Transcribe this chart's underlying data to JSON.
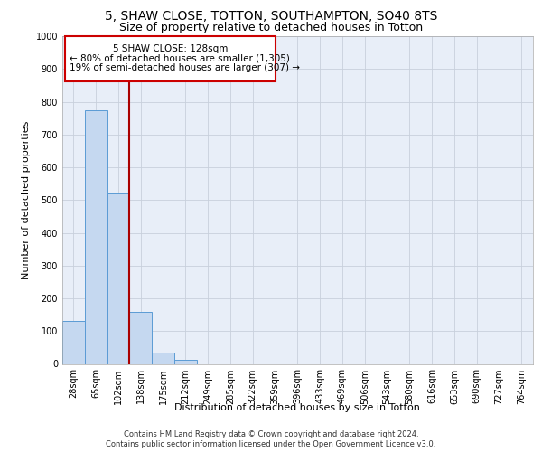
{
  "title1": "5, SHAW CLOSE, TOTTON, SOUTHAMPTON, SO40 8TS",
  "title2": "Size of property relative to detached houses in Totton",
  "xlabel": "Distribution of detached houses by size in Totton",
  "ylabel": "Number of detached properties",
  "bin_labels": [
    "28sqm",
    "65sqm",
    "102sqm",
    "138sqm",
    "175sqm",
    "212sqm",
    "249sqm",
    "285sqm",
    "322sqm",
    "359sqm",
    "396sqm",
    "433sqm",
    "469sqm",
    "506sqm",
    "543sqm",
    "580sqm",
    "616sqm",
    "653sqm",
    "690sqm",
    "727sqm",
    "764sqm"
  ],
  "bar_values": [
    130,
    775,
    520,
    160,
    35,
    12,
    0,
    0,
    0,
    0,
    0,
    0,
    0,
    0,
    0,
    0,
    0,
    0,
    0,
    0,
    0
  ],
  "bar_color": "#c5d8f0",
  "bar_edge_color": "#5b9bd5",
  "grid_color": "#c8d0dc",
  "bg_color": "#e8eef8",
  "vline_color": "#aa0000",
  "annotation_line1": "5 SHAW CLOSE: 128sqm",
  "annotation_line2": "← 80% of detached houses are smaller (1,305)",
  "annotation_line3": "19% of semi-detached houses are larger (307) →",
  "annotation_box_color": "#cc0000",
  "ylim": [
    0,
    1000
  ],
  "yticks": [
    0,
    100,
    200,
    300,
    400,
    500,
    600,
    700,
    800,
    900,
    1000
  ],
  "footer1": "Contains HM Land Registry data © Crown copyright and database right 2024.",
  "footer2": "Contains public sector information licensed under the Open Government Licence v3.0.",
  "title1_fontsize": 10,
  "title2_fontsize": 9,
  "ylabel_fontsize": 8,
  "xlabel_fontsize": 8,
  "tick_fontsize": 7,
  "annotation_fontsize": 7.5,
  "footer_fontsize": 6
}
